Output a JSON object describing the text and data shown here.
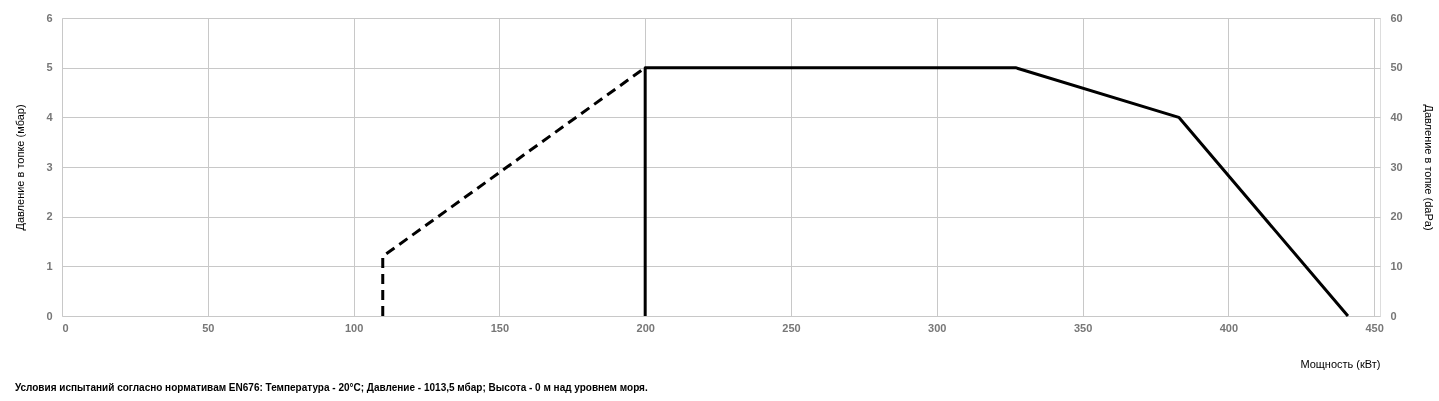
{
  "chart_data": {
    "type": "line",
    "ylabel": "Давление в топке (мбар)",
    "y2label": "Давление в топке (daPa)",
    "xlabel": "Мощность (кВт)",
    "annotations": [
      "Условия испытаний согласно нормативам EN676: Температура - 20°C; Давление - 1013,5 мбар; Высота - 0 м над уровнем моря."
    ],
    "series": [
      {
        "color": "#000000",
        "line_style": "dashed",
        "x": [
          110,
          110,
          200
        ],
        "values": [
          0,
          1.2,
          5
        ]
      },
      {
        "color": "#000000",
        "line_style": "solid",
        "x": [
          200,
          200,
          327,
          383,
          441
        ],
        "values": [
          0,
          5,
          5,
          4,
          0
        ]
      }
    ],
    "xlim": [
      0,
      452
    ],
    "xticks": [
      0,
      50,
      100,
      150,
      200,
      250,
      300,
      350,
      400,
      450
    ],
    "ylim": [
      0,
      6
    ],
    "yticks": [
      0,
      1,
      2,
      3,
      4,
      5,
      6
    ],
    "y2lim": [
      0,
      60
    ],
    "y2ticks": [
      0,
      10,
      20,
      30,
      40,
      50,
      60
    ],
    "grid": true,
    "marker": "none"
  }
}
